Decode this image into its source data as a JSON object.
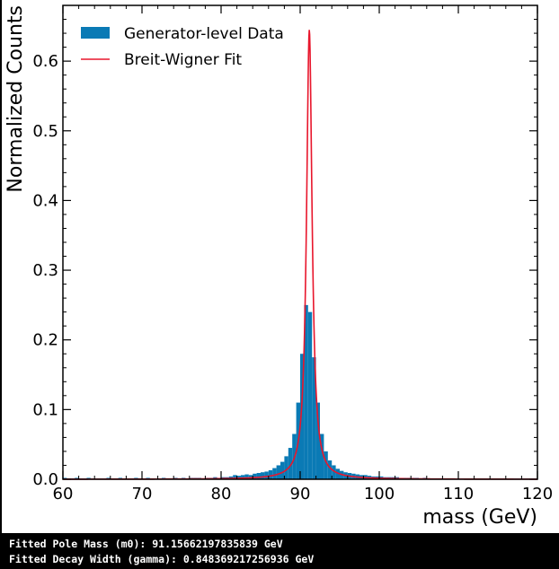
{
  "chart_data": {
    "type": "bar",
    "xlabel": "mass (GeV)",
    "ylabel": "Normalized Counts",
    "xlim": [
      60,
      120
    ],
    "ylim": [
      0,
      0.68
    ],
    "xticks": [
      "60",
      "70",
      "80",
      "90",
      "100",
      "110",
      "120"
    ],
    "yticks": [
      "0.0",
      "0.1",
      "0.2",
      "0.3",
      "0.4",
      "0.5",
      "0.6"
    ],
    "legend_position": "top-left",
    "histogram": {
      "name": "Generator-level Data",
      "bin_width": 0.5,
      "bin_centers": [
        60.25,
        60.75,
        61.25,
        61.75,
        62.25,
        62.75,
        63.25,
        63.75,
        64.25,
        64.75,
        65.25,
        65.75,
        66.25,
        66.75,
        67.25,
        67.75,
        68.25,
        68.75,
        69.25,
        69.75,
        70.25,
        70.75,
        71.25,
        71.75,
        72.25,
        72.75,
        73.25,
        73.75,
        74.25,
        74.75,
        75.25,
        75.75,
        76.25,
        76.75,
        77.25,
        77.75,
        78.25,
        78.75,
        79.25,
        79.75,
        80.25,
        80.75,
        81.25,
        81.75,
        82.25,
        82.75,
        83.25,
        83.75,
        84.25,
        84.75,
        85.25,
        85.75,
        86.25,
        86.75,
        87.25,
        87.75,
        88.25,
        88.75,
        89.25,
        89.75,
        90.25,
        90.75,
        91.25,
        91.75,
        92.25,
        92.75,
        93.25,
        93.75,
        94.25,
        94.75,
        95.25,
        95.75,
        96.25,
        96.75,
        97.25,
        97.75,
        98.25,
        98.75,
        99.25,
        99.75,
        100.25,
        100.75,
        101.25,
        101.75,
        102.25,
        102.75,
        103.25,
        103.75,
        104.25,
        104.75,
        105.25,
        105.75,
        106.25,
        106.75,
        107.25,
        107.75,
        108.25,
        108.75,
        109.25,
        109.75,
        110.25,
        110.75,
        111.25,
        111.75,
        112.25,
        112.75,
        113.25,
        113.75,
        114.25,
        114.75,
        115.25,
        115.75,
        116.25,
        116.75,
        117.25,
        117.75,
        118.25,
        118.75,
        119.25,
        119.75
      ],
      "values": [
        0.002,
        0.001,
        0.001,
        0.002,
        0.001,
        0.001,
        0.002,
        0.001,
        0.001,
        0.001,
        0.001,
        0.002,
        0.001,
        0.001,
        0.002,
        0.001,
        0.001,
        0.001,
        0.002,
        0.001,
        0.001,
        0.002,
        0.001,
        0.001,
        0.001,
        0.002,
        0.001,
        0.001,
        0.002,
        0.001,
        0.002,
        0.001,
        0.002,
        0.002,
        0.002,
        0.001,
        0.002,
        0.002,
        0.003,
        0.002,
        0.003,
        0.003,
        0.004,
        0.006,
        0.005,
        0.006,
        0.007,
        0.006,
        0.008,
        0.009,
        0.01,
        0.011,
        0.013,
        0.016,
        0.02,
        0.025,
        0.033,
        0.045,
        0.065,
        0.11,
        0.18,
        0.25,
        0.24,
        0.175,
        0.11,
        0.065,
        0.04,
        0.027,
        0.02,
        0.015,
        0.012,
        0.01,
        0.009,
        0.008,
        0.007,
        0.006,
        0.006,
        0.005,
        0.004,
        0.004,
        0.004,
        0.003,
        0.003,
        0.003,
        0.003,
        0.002,
        0.002,
        0.002,
        0.002,
        0.002,
        0.001,
        0.002,
        0.001,
        0.001,
        0.001,
        0.001,
        0.001,
        0.001,
        0.001,
        0.001,
        0.001,
        0.001,
        0.001,
        0.001,
        0.001,
        0.001,
        0.001,
        0.001,
        0.001,
        0.001,
        0.001,
        0.001,
        0.001,
        0.001,
        0.001,
        0.001,
        0.001,
        0.001,
        0.001,
        0.001
      ]
    },
    "fit": {
      "name": "Breit-Wigner Fit",
      "type": "line",
      "model": "breit-wigner",
      "m0": 91.15662197835839,
      "gamma": 0.848369217256936,
      "peak": 0.645
    },
    "colors": {
      "histogram": "#0a7ab5",
      "fit": "#e8162c"
    }
  },
  "output": {
    "line1": "Fitted Pole Mass (m0): 91.15662197835839 GeV",
    "line2": "Fitted Decay Width (gamma): 0.848369217256936 GeV"
  }
}
